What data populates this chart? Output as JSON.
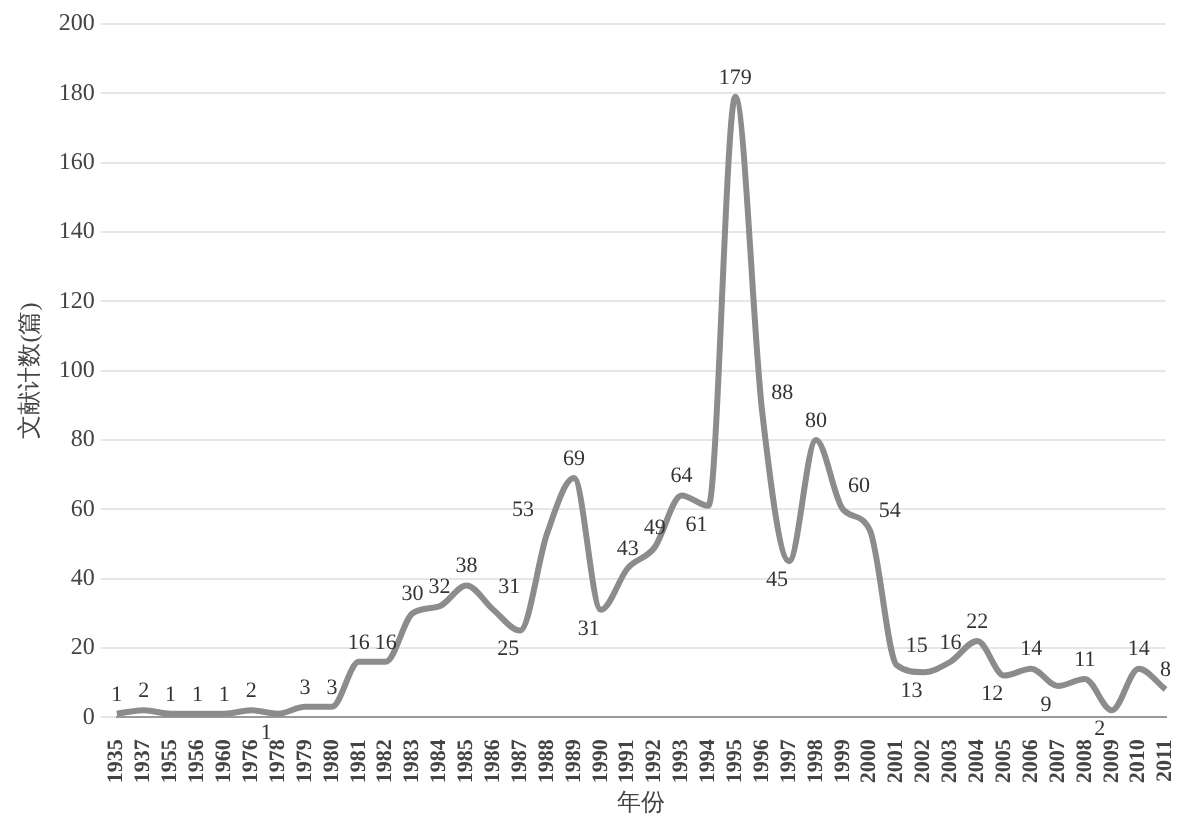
{
  "chart_data": {
    "type": "line",
    "xlabel": "年份",
    "ylabel": "文献计数(篇)",
    "categories": [
      "1935",
      "1937",
      "1955",
      "1956",
      "1960",
      "1976",
      "1978",
      "1979",
      "1980",
      "1981",
      "1982",
      "1983",
      "1984",
      "1985",
      "1986",
      "1987",
      "1988",
      "1989",
      "1990",
      "1991",
      "1992",
      "1993",
      "1994",
      "1995",
      "1996",
      "1997",
      "1998",
      "1999",
      "2000",
      "2001",
      "2002",
      "2003",
      "2004",
      "2005",
      "2006",
      "2007",
      "2008",
      "2009",
      "2010",
      "2011"
    ],
    "series": [
      {
        "color": "#8c8c8c",
        "values": [
          1,
          2,
          1,
          1,
          1,
          2,
          1,
          3,
          3,
          16,
          16,
          30,
          32,
          38,
          31,
          25,
          53,
          69,
          31,
          43,
          49,
          64,
          61,
          179,
          88,
          45,
          80,
          60,
          54,
          15,
          13,
          16,
          22,
          12,
          14,
          9,
          11,
          2,
          14,
          8
        ]
      }
    ],
    "ylim": [
      0,
      200
    ],
    "yticks": [
      0,
      20,
      40,
      60,
      80,
      100,
      120,
      140,
      160,
      180,
      200
    ],
    "grid": "y",
    "data_labels": true,
    "marker": "none",
    "line_style": "solid",
    "legend": false
  }
}
